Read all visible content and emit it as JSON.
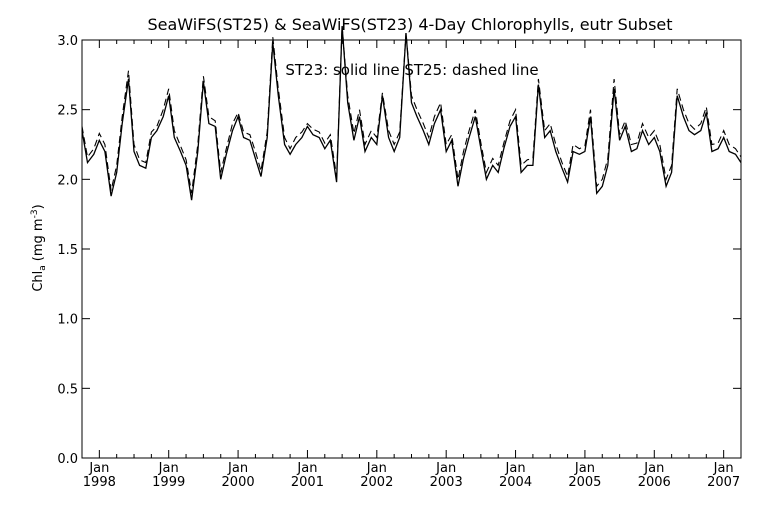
{
  "chart_data": {
    "type": "line",
    "title": "SeaWiFS(ST25) & SeaWiFS(ST23) 4-Day Chlorophylls, eutr Subset",
    "ylabel_main": "Chl",
    "ylabel_sub": "a",
    "ylabel_units": "(mg m",
    "ylabel_units_sup": "-3",
    "ylabel_units_close": ")",
    "legend": "ST23: solid line   ST25: dashed line",
    "xlim": [
      1997.75,
      2007.25
    ],
    "ylim": [
      0,
      3.0
    ],
    "yticks": [
      "0.0",
      "0.5",
      "1.0",
      "1.5",
      "2.0",
      "2.5",
      "3.0"
    ],
    "ytick_values": [
      0,
      0.5,
      1.0,
      1.5,
      2.0,
      2.5,
      3.0
    ],
    "xticks": [
      {
        "month": "Jan",
        "year": "1998",
        "x": 1998
      },
      {
        "month": "Jan",
        "year": "1999",
        "x": 1999
      },
      {
        "month": "Jan",
        "year": "2000",
        "x": 2000
      },
      {
        "month": "Jan",
        "year": "2001",
        "x": 2001
      },
      {
        "month": "Jan",
        "year": "2002",
        "x": 2002
      },
      {
        "month": "Jan",
        "year": "2003",
        "x": 2003
      },
      {
        "month": "Jan",
        "year": "2004",
        "x": 2004
      },
      {
        "month": "Jan",
        "year": "2005",
        "x": 2005
      },
      {
        "month": "Jan",
        "year": "2006",
        "x": 2006
      },
      {
        "month": "Jan",
        "year": "2007",
        "x": 2007
      }
    ],
    "series": [
      {
        "name": "ST23",
        "style": "solid",
        "x": [
          1997.75,
          1997.83,
          1997.92,
          1998.0,
          1998.08,
          1998.17,
          1998.25,
          1998.33,
          1998.42,
          1998.5,
          1998.58,
          1998.67,
          1998.75,
          1998.83,
          1998.92,
          1999.0,
          1999.08,
          1999.17,
          1999.25,
          1999.33,
          1999.42,
          1999.5,
          1999.58,
          1999.67,
          1999.75,
          1999.83,
          1999.92,
          2000.0,
          2000.08,
          2000.17,
          2000.25,
          2000.33,
          2000.42,
          2000.5,
          2000.58,
          2000.67,
          2000.75,
          2000.83,
          2000.92,
          2001.0,
          2001.08,
          2001.17,
          2001.25,
          2001.33,
          2001.42,
          2001.5,
          2001.58,
          2001.67,
          2001.75,
          2001.83,
          2001.92,
          2002.0,
          2002.08,
          2002.17,
          2002.25,
          2002.33,
          2002.42,
          2002.5,
          2002.58,
          2002.67,
          2002.75,
          2002.83,
          2002.92,
          2003.0,
          2003.08,
          2003.17,
          2003.25,
          2003.33,
          2003.42,
          2003.5,
          2003.58,
          2003.67,
          2003.75,
          2003.83,
          2003.92,
          2004.0,
          2004.08,
          2004.17,
          2004.25,
          2004.33,
          2004.42,
          2004.5,
          2004.58,
          2004.67,
          2004.75,
          2004.83,
          2004.92,
          2005.0,
          2005.08,
          2005.17,
          2005.25,
          2005.33,
          2005.42,
          2005.5,
          2005.58,
          2005.67,
          2005.75,
          2005.83,
          2005.92,
          2006.0,
          2006.08,
          2006.17,
          2006.25,
          2006.33,
          2006.42,
          2006.5,
          2006.58,
          2006.67,
          2006.75,
          2006.83,
          2006.92,
          2007.0,
          2007.08,
          2007.17,
          2007.25
        ],
        "y": [
          2.35,
          2.12,
          2.18,
          2.28,
          2.2,
          1.88,
          2.05,
          2.4,
          2.72,
          2.2,
          2.1,
          2.08,
          2.3,
          2.35,
          2.45,
          2.6,
          2.3,
          2.2,
          2.1,
          1.85,
          2.2,
          2.7,
          2.4,
          2.38,
          2.0,
          2.18,
          2.35,
          2.45,
          2.3,
          2.28,
          2.15,
          2.02,
          2.3,
          2.98,
          2.6,
          2.25,
          2.18,
          2.25,
          2.3,
          2.38,
          2.32,
          2.3,
          2.22,
          2.28,
          1.98,
          3.1,
          2.55,
          2.28,
          2.45,
          2.2,
          2.3,
          2.25,
          2.6,
          2.3,
          2.2,
          2.3,
          3.05,
          2.55,
          2.45,
          2.35,
          2.25,
          2.4,
          2.5,
          2.2,
          2.28,
          1.95,
          2.15,
          2.3,
          2.45,
          2.22,
          2.0,
          2.1,
          2.05,
          2.22,
          2.38,
          2.45,
          2.05,
          2.1,
          2.1,
          2.68,
          2.3,
          2.35,
          2.2,
          2.08,
          1.98,
          2.2,
          2.18,
          2.2,
          2.45,
          1.9,
          1.95,
          2.1,
          2.65,
          2.28,
          2.38,
          2.2,
          2.22,
          2.35,
          2.25,
          2.3,
          2.2,
          1.95,
          2.05,
          2.6,
          2.45,
          2.35,
          2.32,
          2.35,
          2.48,
          2.2,
          2.22,
          2.3,
          2.2,
          2.18,
          2.12
        ]
      },
      {
        "name": "ST25",
        "style": "dashed",
        "x": [
          1997.75,
          1997.83,
          1997.92,
          1998.0,
          1998.08,
          1998.17,
          1998.25,
          1998.33,
          1998.42,
          1998.5,
          1998.58,
          1998.67,
          1998.75,
          1998.83,
          1998.92,
          1999.0,
          1999.08,
          1999.17,
          1999.25,
          1999.33,
          1999.42,
          1999.5,
          1999.58,
          1999.67,
          1999.75,
          1999.83,
          1999.92,
          2000.0,
          2000.08,
          2000.17,
          2000.25,
          2000.33,
          2000.42,
          2000.5,
          2000.58,
          2000.67,
          2000.75,
          2000.83,
          2000.92,
          2001.0,
          2001.08,
          2001.17,
          2001.25,
          2001.33,
          2001.42,
          2001.5,
          2001.58,
          2001.67,
          2001.75,
          2001.83,
          2001.92,
          2002.0,
          2002.08,
          2002.17,
          2002.25,
          2002.33,
          2002.42,
          2002.5,
          2002.58,
          2002.67,
          2002.75,
          2002.83,
          2002.92,
          2003.0,
          2003.08,
          2003.17,
          2003.25,
          2003.33,
          2003.42,
          2003.5,
          2003.58,
          2003.67,
          2003.75,
          2003.83,
          2003.92,
          2004.0,
          2004.08,
          2004.17,
          2004.25,
          2004.33,
          2004.42,
          2004.5,
          2004.58,
          2004.67,
          2004.75,
          2004.83,
          2004.92,
          2005.0,
          2005.08,
          2005.17,
          2005.25,
          2005.33,
          2005.42,
          2005.5,
          2005.58,
          2005.67,
          2005.75,
          2005.83,
          2005.92,
          2006.0,
          2006.08,
          2006.17,
          2006.25,
          2006.33,
          2006.42,
          2006.5,
          2006.58,
          2006.67,
          2006.75,
          2006.83,
          2006.92,
          2007.0,
          2007.08,
          2007.17,
          2007.25
        ],
        "y": [
          2.38,
          2.16,
          2.22,
          2.33,
          2.25,
          1.92,
          2.1,
          2.45,
          2.78,
          2.25,
          2.14,
          2.12,
          2.34,
          2.38,
          2.5,
          2.65,
          2.35,
          2.24,
          2.14,
          1.9,
          2.25,
          2.74,
          2.45,
          2.42,
          2.05,
          2.22,
          2.4,
          2.48,
          2.34,
          2.32,
          2.2,
          2.06,
          2.34,
          3.02,
          2.65,
          2.3,
          2.22,
          2.3,
          2.34,
          2.4,
          2.36,
          2.34,
          2.26,
          2.32,
          2.02,
          3.1,
          2.6,
          2.33,
          2.5,
          2.25,
          2.35,
          2.3,
          2.62,
          2.35,
          2.25,
          2.34,
          3.05,
          2.6,
          2.5,
          2.4,
          2.3,
          2.45,
          2.55,
          2.25,
          2.32,
          2.0,
          2.2,
          2.35,
          2.5,
          2.26,
          2.05,
          2.15,
          2.1,
          2.26,
          2.42,
          2.5,
          2.1,
          2.14,
          2.15,
          2.72,
          2.35,
          2.4,
          2.25,
          2.12,
          2.02,
          2.25,
          2.22,
          2.24,
          2.5,
          1.95,
          2.0,
          2.15,
          2.72,
          2.32,
          2.42,
          2.25,
          2.26,
          2.4,
          2.3,
          2.35,
          2.25,
          2.0,
          2.1,
          2.65,
          2.5,
          2.4,
          2.36,
          2.4,
          2.52,
          2.25,
          2.26,
          2.35,
          2.25,
          2.22,
          2.16
        ]
      }
    ]
  }
}
